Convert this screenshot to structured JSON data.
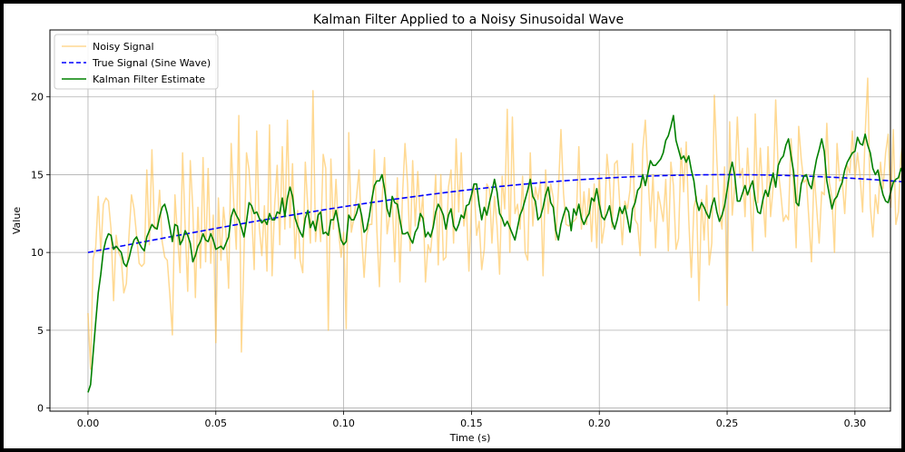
{
  "chart_data": {
    "type": "line",
    "title": "Kalman Filter Applied to a Noisy Sinusoidal Wave",
    "xlabel": "Time (s)",
    "ylabel": "Value",
    "xlim": [
      -0.0149,
      0.3139
    ],
    "ylim": [
      -0.2,
      24.3
    ],
    "xticks": [
      0.0,
      0.05,
      0.1,
      0.15,
      0.2,
      0.25,
      0.3
    ],
    "xtick_labels": [
      "0.00",
      "0.05",
      "0.10",
      "0.15",
      "0.20",
      "0.25",
      "0.30"
    ],
    "yticks": [
      0,
      5,
      10,
      15,
      20
    ],
    "ytick_labels": [
      "0",
      "5",
      "10",
      "15",
      "20"
    ],
    "grid": true,
    "legend_position": "top-left",
    "x_start": 0.0,
    "x_step": 0.001,
    "series": [
      {
        "name": "Noisy Signal",
        "color": "#ffc04a",
        "dash": "solid",
        "values": [
          6.1,
          2.5,
          9.6,
          10.3,
          13.6,
          10.0,
          13.1,
          13.5,
          13.3,
          11.5,
          6.9,
          11.1,
          10.0,
          9.6,
          7.4,
          8.0,
          11.0,
          13.7,
          12.8,
          11.1,
          9.3,
          9.1,
          9.3,
          15.3,
          10.5,
          16.6,
          11.5,
          11.7,
          14.0,
          10.7,
          9.7,
          9.5,
          7.3,
          4.7,
          13.7,
          11.1,
          8.7,
          16.4,
          11.6,
          7.5,
          15.9,
          12.8,
          7.1,
          12.9,
          9.0,
          16.1,
          9.4,
          15.4,
          9.3,
          12.4,
          4.2,
          13.5,
          9.5,
          12.9,
          11.2,
          7.7,
          17.0,
          13.2,
          10.2,
          18.8,
          3.6,
          9.8,
          16.4,
          15.3,
          12.6,
          8.9,
          17.8,
          11.6,
          9.8,
          13.0,
          8.8,
          18.2,
          8.5,
          13.0,
          15.6,
          10.5,
          16.8,
          11.5,
          18.5,
          11.6,
          15.7,
          9.6,
          12.7,
          9.5,
          8.7,
          15.8,
          12.8,
          10.6,
          20.4,
          10.7,
          12.6,
          10.7,
          16.3,
          15.4,
          5.0,
          16.0,
          11.5,
          14.7,
          11.4,
          9.7,
          11.3,
          5.1,
          17.7,
          11.3,
          12.2,
          13.5,
          15.3,
          11.2,
          8.4,
          11.1,
          11.8,
          11.8,
          16.6,
          11.4,
          7.8,
          13.3,
          16.1,
          11.2,
          12.4,
          13.3,
          9.4,
          14.8,
          8.1,
          13.6,
          17.0,
          14.4,
          10.1,
          15.9,
          11.7,
          15.2,
          12.0,
          13.7,
          8.1,
          10.5,
          10.0,
          11.9,
          15.0,
          9.2,
          15.0,
          9.5,
          9.7,
          14.2,
          15.3,
          10.6,
          17.3,
          12.6,
          16.4,
          11.7,
          13.0,
          8.8,
          13.1,
          14.4,
          11.1,
          12.0,
          8.9,
          10.2,
          14.4,
          14.1,
          10.6,
          13.6,
          11.7,
          8.6,
          14.9,
          12.8,
          19.2,
          10.0,
          18.7,
          12.5,
          13.1,
          11.5,
          14.9,
          10.0,
          9.5,
          16.4,
          11.7,
          14.2,
          13.4,
          14.6,
          8.5,
          15.3,
          12.5,
          14.4,
          13.5,
          10.8,
          14.0,
          17.9,
          13.8,
          11.8,
          11.7,
          11.9,
          12.0,
          12.2,
          16.8,
          11.5,
          13.9,
          11.8,
          14.1,
          10.7,
          14.4,
          10.3,
          15.1,
          10.6,
          11.7,
          16.3,
          14.6,
          11.6,
          15.7,
          15.9,
          13.1,
          10.5,
          13.3,
          12.8,
          14.0,
          17.0,
          12.1,
          11.8,
          9.8,
          16.6,
          18.5,
          15.1,
          12.0,
          15.0,
          10.3,
          13.9,
          13.0,
          12.0,
          14.7,
          10.1,
          15.8,
          14.3,
          10.2,
          10.9,
          16.7,
          13.9,
          17.1,
          12.1,
          8.4,
          12.9,
          13.6,
          6.9,
          13.4,
          10.8,
          14.3,
          9.2,
          10.6,
          20.1,
          15.9,
          12.6,
          11.5,
          15.5,
          6.6,
          18.4,
          12.4,
          14.3,
          18.7,
          14.8,
          15.4,
          12.3,
          16.7,
          13.7,
          10.1,
          18.9,
          13.2,
          16.7,
          13.6,
          11.0,
          16.8,
          12.3,
          14.2,
          19.8,
          15.3,
          13.8,
          12.0,
          12.4,
          12.1,
          17.3,
          14.3,
          10.3,
          18.1,
          16.0,
          14.5,
          14.7,
          12.1,
          9.4,
          15.2,
          12.9,
          10.6,
          13.9,
          13.7,
          18.3,
          14.5,
          13.5,
          10.0,
          17.0,
          14.6,
          14.7,
          12.5,
          15.6,
          15.1,
          17.8,
          14.7,
          16.4,
          14.9,
          12.6,
          17.6,
          21.2,
          13.0,
          11.0,
          13.7,
          12.5,
          15.8,
          14.1,
          16.4,
          17.6,
          12.9,
          17.9,
          11.8,
          12.6,
          16.2,
          17.6,
          17.6,
          13.8,
          16.8,
          16.9,
          11.1,
          14.8
        ]
      },
      {
        "name": "True Signal (Sine Wave)",
        "color": "#0000ff",
        "dash": "dashed",
        "function_note": "10 + 5*sin(2*pi*1*t)",
        "amplitude": 5,
        "offset": 10,
        "frequency": 1
      },
      {
        "name": "Kalman Filter Estimate",
        "color": "#008000",
        "dash": "solid",
        "values": [
          1.0,
          1.5,
          3.5,
          5.5,
          7.4,
          8.6,
          10.1,
          10.8,
          11.2,
          11.1,
          10.2,
          10.4,
          10.2,
          10.0,
          9.3,
          9.1,
          9.6,
          10.3,
          10.8,
          11.0,
          10.6,
          10.3,
          10.1,
          11.0,
          11.4,
          11.8,
          11.6,
          11.5,
          12.3,
          12.9,
          13.1,
          12.5,
          11.6,
          10.7,
          11.8,
          11.7,
          10.5,
          10.8,
          11.4,
          11.1,
          10.6,
          9.4,
          9.8,
          10.4,
          10.7,
          11.2,
          10.8,
          10.7,
          11.2,
          10.8,
          10.2,
          10.3,
          10.4,
          10.2,
          10.6,
          11.0,
          12.3,
          12.8,
          12.4,
          12.1,
          11.6,
          11.0,
          12.0,
          13.2,
          13.0,
          12.5,
          12.6,
          12.2,
          11.9,
          12.1,
          11.8,
          12.5,
          12.1,
          12.1,
          12.6,
          12.5,
          13.5,
          12.3,
          13.5,
          14.2,
          13.6,
          12.2,
          11.7,
          11.3,
          11.0,
          12.2,
          12.7,
          11.6,
          12.0,
          11.4,
          12.4,
          12.6,
          11.2,
          11.3,
          11.1,
          12.1,
          12.1,
          12.7,
          11.8,
          10.8,
          10.5,
          10.7,
          12.4,
          12.1,
          12.1,
          12.5,
          13.1,
          12.4,
          11.3,
          11.5,
          12.3,
          13.4,
          14.3,
          14.6,
          14.6,
          15.0,
          14.1,
          12.8,
          12.3,
          13.6,
          13.2,
          13.1,
          12.1,
          11.2,
          11.2,
          11.3,
          10.9,
          10.6,
          11.3,
          11.6,
          12.5,
          12.2,
          11.0,
          11.3,
          11.0,
          11.6,
          12.6,
          13.1,
          12.8,
          12.4,
          11.5,
          12.4,
          12.8,
          11.7,
          11.4,
          11.8,
          12.4,
          12.2,
          13.0,
          13.1,
          13.7,
          14.4,
          14.4,
          13.1,
          12.1,
          12.9,
          12.4,
          13.2,
          13.9,
          14.7,
          13.9,
          12.5,
          12.2,
          11.7,
          12.0,
          11.6,
          11.2,
          10.8,
          11.6,
          12.4,
          12.8,
          13.4,
          14.0,
          14.7,
          13.6,
          13.3,
          12.1,
          12.3,
          12.9,
          13.7,
          14.2,
          13.2,
          12.9,
          11.4,
          10.8,
          11.8,
          12.4,
          12.9,
          12.6,
          11.4,
          12.8,
          12.4,
          13.1,
          12.2,
          11.8,
          12.2,
          12.5,
          13.5,
          13.3,
          14.1,
          13.1,
          12.3,
          12.1,
          12.5,
          13.0,
          12.0,
          11.5,
          12.1,
          12.9,
          12.5,
          13.0,
          12.2,
          11.3,
          12.8,
          13.2,
          14.0,
          14.2,
          15.0,
          14.3,
          15.1,
          15.9,
          15.6,
          15.6,
          15.8,
          16.0,
          16.4,
          17.2,
          17.5,
          18.1,
          18.8,
          17.2,
          16.6,
          16.0,
          16.2,
          15.8,
          16.2,
          15.3,
          14.6,
          13.3,
          12.7,
          13.2,
          12.9,
          12.5,
          12.2,
          13.0,
          13.5,
          12.6,
          12.0,
          12.4,
          13.0,
          14.0,
          15.1,
          15.8,
          14.9,
          13.3,
          13.3,
          13.8,
          14.3,
          13.7,
          14.2,
          14.6,
          13.4,
          12.6,
          12.5,
          13.4,
          14.0,
          13.6,
          14.4,
          15.1,
          14.2,
          15.6,
          16.0,
          16.2,
          16.9,
          17.3,
          16.2,
          15.2,
          13.2,
          13.0,
          14.4,
          14.9,
          15.0,
          14.4,
          14.1,
          15.1,
          16.0,
          16.6,
          17.3,
          16.5,
          14.6,
          13.7,
          12.8,
          13.4,
          13.6,
          14.1,
          14.5,
          15.3,
          15.8,
          16.1,
          16.4,
          16.5,
          17.4,
          17.0,
          16.9,
          17.6,
          16.9,
          16.4,
          15.4,
          15.0,
          15.3,
          14.4,
          13.7,
          13.3,
          13.2,
          13.9,
          14.5,
          14.7,
          14.8,
          15.4,
          15.0,
          14.0,
          13.8,
          14.6,
          14.8,
          13.7,
          13.6,
          14.6,
          14.4,
          15.1,
          15.0,
          14.4,
          13.9,
          13.8,
          14.1,
          14.4,
          14.5,
          14.8,
          14.7,
          15.0,
          15.1,
          14.4,
          14.1,
          13.7,
          14.5,
          15.2,
          14.6,
          13.4,
          13.6,
          14.2,
          15.0,
          15.3,
          14.7,
          13.9,
          13.5,
          14.0,
          14.3,
          14.1,
          14.8,
          15.1,
          14.9,
          14.8,
          15.1,
          15.2,
          16.0,
          16.2,
          15.2,
          15.4,
          15.6,
          16.4,
          16.6,
          16.2,
          15.9,
          16.1,
          16.5,
          16.6,
          16.4,
          16.0,
          15.5,
          15.2,
          15.1,
          16.4,
          16.6,
          16.2,
          15.8,
          16.3,
          16.6,
          16.0,
          15.4,
          15.1,
          14.8,
          14.9
        ]
      }
    ]
  }
}
